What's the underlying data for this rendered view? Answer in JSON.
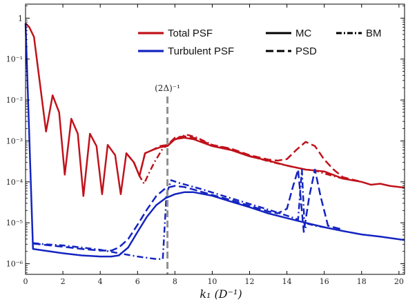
{
  "chart_data": {
    "type": "line",
    "title": "",
    "xlabel": "k₁ (D⁻¹)",
    "ylabel": "",
    "xlim": [
      0,
      20.3
    ],
    "ylim": [
      5.5e-07,
      2.2
    ],
    "yscale": "log",
    "grid": false,
    "xticks": [
      0,
      2,
      4,
      6,
      8,
      10,
      12,
      14,
      16,
      18,
      20
    ],
    "xtick_labels": [
      "0",
      "2",
      "4",
      "6",
      "8",
      "10",
      "12",
      "14",
      "16",
      "18",
      "20"
    ],
    "yticks": [
      1e-06,
      1e-05,
      0.0001,
      0.001,
      0.01,
      0.1,
      1
    ],
    "ytick_labels": [
      "10⁻⁶",
      "10⁻⁵",
      "10⁻⁴",
      "10⁻³",
      "10⁻²",
      "10⁻¹",
      "1"
    ],
    "annotation": {
      "text": "(2Δ)⁻¹",
      "x": 7.6,
      "color": "#909090"
    },
    "legend": {
      "placement": "top-right",
      "entries": [
        {
          "label": "Total PSF",
          "color": "#c0121b",
          "style": "solid"
        },
        {
          "label": "Turbulent PSF",
          "color": "#1424c0",
          "style": "solid"
        },
        {
          "label": "MC",
          "color": "#000000",
          "style": "solid"
        },
        {
          "label": "PSD",
          "color": "#000000",
          "style": "dash"
        },
        {
          "label": "BM",
          "color": "#000000",
          "style": "dashdot"
        }
      ]
    },
    "series": [
      {
        "color": "#c0121b",
        "style": "solid",
        "x": [
          0,
          0.2,
          0.45,
          0.75,
          1.1,
          1.45,
          1.8,
          2.1,
          2.45,
          2.8,
          3.1,
          3.45,
          3.8,
          4.1,
          4.4,
          4.8,
          5.1,
          5.4,
          5.8,
          6.1,
          6.4,
          6.8,
          7.2,
          7.6,
          8.0,
          8.5,
          9.0,
          10,
          11,
          12,
          13,
          14,
          15,
          16,
          17,
          18,
          18.5,
          19,
          19.5,
          20,
          20.3
        ],
        "y": [
          0.75,
          0.6,
          0.35,
          0.03,
          0.0017,
          0.013,
          0.005,
          0.00015,
          0.0035,
          0.0015,
          4.5e-05,
          0.0015,
          0.00075,
          5e-05,
          0.0008,
          0.00045,
          5e-05,
          0.0005,
          0.0003,
          0.00014,
          0.0005,
          0.0006,
          0.0007,
          0.00075,
          0.0011,
          0.0012,
          0.0011,
          0.00075,
          0.0006,
          0.00042,
          0.00033,
          0.00025,
          0.0002,
          0.00018,
          0.00012,
          0.0001,
          8.5e-05,
          9e-05,
          8e-05,
          7.5e-05,
          7.2e-05
        ]
      },
      {
        "color": "#c0121b",
        "style": "dash",
        "x": [
          5.4,
          5.8,
          6.1,
          6.4,
          6.8,
          7.2,
          7.6,
          8.0,
          8.5,
          9.0,
          10,
          11,
          12,
          13,
          13.5,
          14,
          14.5,
          15,
          15.5,
          16,
          16.5,
          17,
          18
        ],
        "y": [
          0.0005,
          0.0003,
          0.00014,
          0.0005,
          0.0006,
          0.00075,
          0.0008,
          0.0012,
          0.0013,
          0.0012,
          0.0008,
          0.00065,
          0.00045,
          0.00035,
          0.00033,
          0.00036,
          0.0006,
          0.00095,
          0.00075,
          0.00035,
          0.0002,
          0.00013,
          0.0001
        ]
      },
      {
        "color": "#c0121b",
        "style": "dashdot",
        "x": [
          5.8,
          6.1,
          6.35,
          6.6,
          6.9,
          7.3,
          7.6,
          7.9,
          8.3,
          8.7,
          9.2,
          10,
          11,
          12,
          13,
          14,
          15,
          15.5,
          16,
          17
        ],
        "y": [
          0.0003,
          0.00014,
          9e-05,
          0.00016,
          0.0003,
          0.0006,
          0.0008,
          0.001,
          0.0013,
          0.0014,
          0.0012,
          0.0008,
          0.00062,
          0.00043,
          0.00032,
          0.00025,
          0.0002,
          0.00019,
          0.00016,
          0.00012
        ]
      },
      {
        "color": "#1424c0",
        "style": "solid",
        "x": [
          0,
          0.4,
          1,
          2,
          3,
          4,
          4.6,
          5,
          5.5,
          6,
          6.5,
          7,
          7.5,
          8,
          8.5,
          9,
          10,
          11,
          12,
          13,
          14,
          15,
          16,
          17,
          18,
          19,
          20.3
        ],
        "y": [
          0.75,
          2.3e-06,
          2.1e-06,
          1.8e-06,
          1.6e-06,
          1.5e-06,
          1.5e-06,
          1.6e-06,
          2.5e-06,
          6e-06,
          1.4e-05,
          2.7e-05,
          4e-05,
          5e-05,
          5.6e-05,
          5.6e-05,
          4.6e-05,
          3.3e-05,
          2.4e-05,
          1.7e-05,
          1.3e-05,
          1e-05,
          7.8e-06,
          6.3e-06,
          5.2e-06,
          4.6e-06,
          3.8e-06
        ]
      },
      {
        "color": "#1424c0",
        "style": "dash",
        "x": [
          0.4,
          1,
          2,
          3,
          4,
          4.6,
          5,
          5.5,
          6,
          6.5,
          7,
          7.5,
          8,
          8.5,
          9,
          10,
          11,
          12,
          13,
          13.5,
          14,
          14.3,
          14.6,
          14.9,
          15.2,
          15.5,
          15.8,
          16.2,
          17
        ],
        "y": [
          3.1e-06,
          2.9e-06,
          2.6e-06,
          2.3e-06,
          2.1e-06,
          2.1e-06,
          2.5e-06,
          4e-06,
          9e-06,
          2.1e-05,
          4.5e-05,
          7e-05,
          8e-05,
          7.5e-05,
          6.5e-05,
          4.8e-05,
          3.6e-05,
          2.6e-05,
          1.9e-05,
          1.7e-05,
          2.2e-05,
          7e-05,
          0.0002,
          6e-06,
          4.5e-05,
          0.0002,
          4.5e-05,
          8.5e-06,
          6.8e-06
        ]
      },
      {
        "color": "#1424c0",
        "style": "dashdot",
        "x": [
          0.4,
          1,
          2,
          3,
          4,
          5,
          6,
          7,
          7.35,
          7.55,
          7.8,
          8.2,
          8.8,
          9.5,
          10,
          11,
          12,
          13,
          14,
          14.6,
          14.8,
          14.95,
          15.1,
          15.5,
          16
        ],
        "y": [
          3.2e-06,
          3e-06,
          2.8e-06,
          2.5e-06,
          2.2e-06,
          1.8e-06,
          1.5e-06,
          1.3e-06,
          1.3e-06,
          5e-05,
          0.00011,
          9.5e-05,
          8e-05,
          6.5e-05,
          5.5e-05,
          4e-05,
          2.9e-05,
          2.1e-05,
          1.5e-05,
          1.2e-05,
          0.0002,
          7e-06,
          9.5e-06,
          8.5e-06,
          7.8e-06
        ]
      }
    ]
  }
}
